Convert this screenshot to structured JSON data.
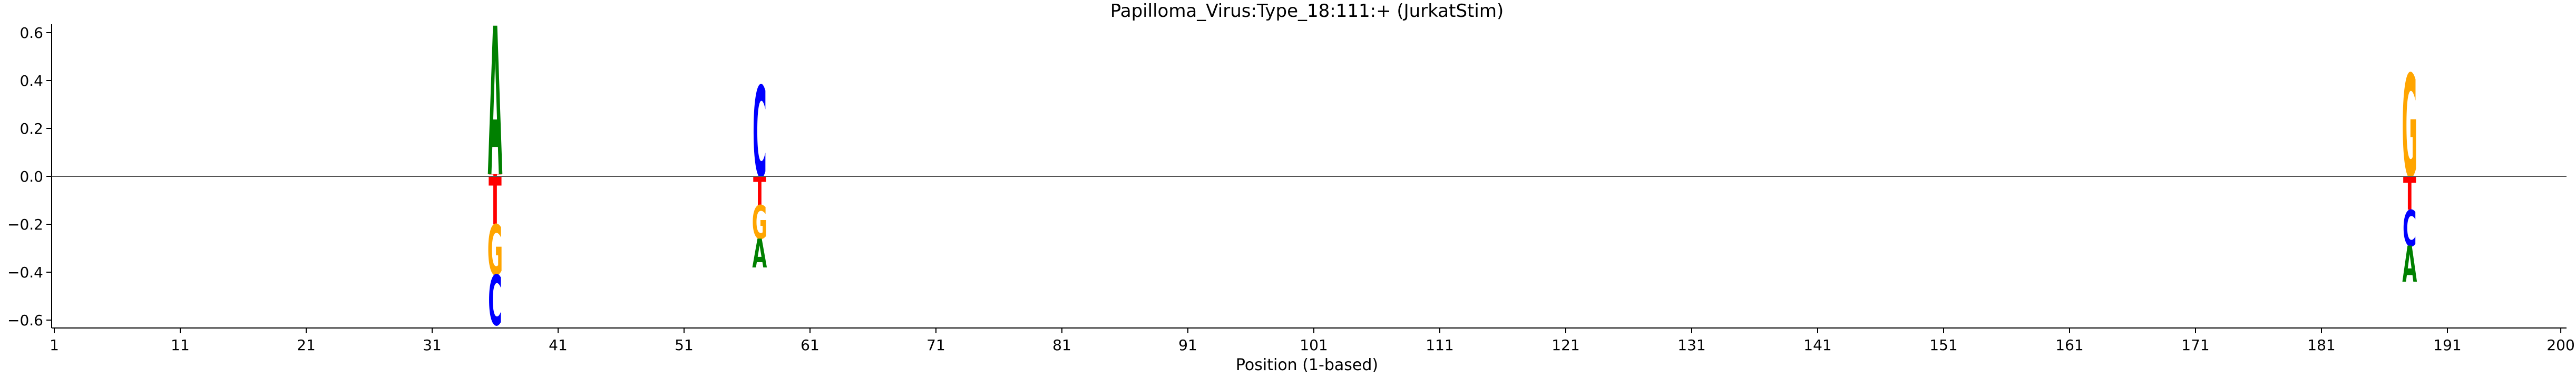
{
  "chart_data": {
    "type": "sequence-logo",
    "title": "Papilloma_Virus:Type_18:111:+  (JurkatStim)",
    "xlabel": "Position (1-based)",
    "ylabel": "",
    "xlim": [
      1,
      200
    ],
    "ylim": [
      -0.62,
      0.63
    ],
    "x_ticks": [
      1,
      11,
      21,
      31,
      41,
      51,
      61,
      71,
      81,
      91,
      101,
      111,
      121,
      131,
      141,
      151,
      161,
      171,
      181,
      191,
      200
    ],
    "y_ticks": [
      -0.6,
      -0.4,
      -0.2,
      0.0,
      0.2,
      0.4,
      0.6
    ],
    "y_tick_labels": [
      "−0.6",
      "−0.4",
      "−0.2",
      "0.0",
      "0.2",
      "0.4",
      "0.6"
    ],
    "grid": false,
    "zero_line": true,
    "colors": {
      "A": "#008000",
      "C": "#0000ff",
      "G": "#ffa500",
      "T": "#ff0000"
    },
    "positions": [
      {
        "position": 36,
        "letters": [
          {
            "base": "T",
            "value": 0.01
          },
          {
            "base": "A",
            "value": 0.62
          },
          {
            "base": "T",
            "value": -0.2
          },
          {
            "base": "G",
            "value": -0.21
          },
          {
            "base": "C",
            "value": -0.21
          }
        ]
      },
      {
        "position": 57,
        "letters": [
          {
            "base": "C",
            "value": 0.38
          },
          {
            "base": "T",
            "value": -0.12
          },
          {
            "base": "G",
            "value": -0.14
          },
          {
            "base": "A",
            "value": -0.12
          }
        ]
      },
      {
        "position": 188,
        "letters": [
          {
            "base": "G",
            "value": 0.43
          },
          {
            "base": "T",
            "value": -0.14
          },
          {
            "base": "C",
            "value": -0.15
          },
          {
            "base": "A",
            "value": -0.15
          }
        ]
      }
    ]
  }
}
